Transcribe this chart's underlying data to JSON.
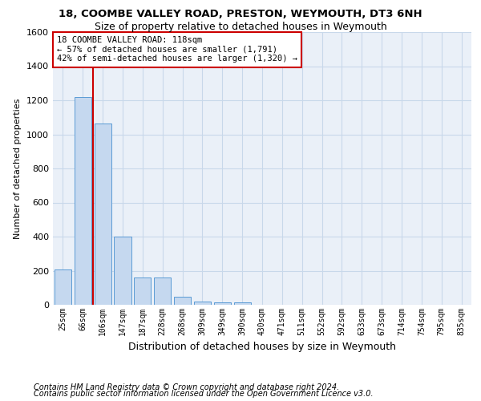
{
  "title1": "18, COOMBE VALLEY ROAD, PRESTON, WEYMOUTH, DT3 6NH",
  "title2": "Size of property relative to detached houses in Weymouth",
  "xlabel": "Distribution of detached houses by size in Weymouth",
  "ylabel": "Number of detached properties",
  "bin_labels": [
    "25sqm",
    "66sqm",
    "106sqm",
    "147sqm",
    "187sqm",
    "228sqm",
    "268sqm",
    "309sqm",
    "349sqm",
    "390sqm",
    "430sqm",
    "471sqm",
    "511sqm",
    "552sqm",
    "592sqm",
    "633sqm",
    "673sqm",
    "714sqm",
    "754sqm",
    "795sqm",
    "835sqm"
  ],
  "bar_heights": [
    205,
    1220,
    1065,
    400,
    160,
    160,
    45,
    18,
    12,
    12,
    0,
    0,
    0,
    0,
    0,
    0,
    0,
    0,
    0,
    0,
    0
  ],
  "bar_color": "#c5d8ef",
  "bar_edge_color": "#5b9bd5",
  "grid_color": "#c8d8ea",
  "bg_color": "#eaf0f8",
  "vline_x_idx": 1,
  "vline_color": "#cc0000",
  "annotation_text": "18 COOMBE VALLEY ROAD: 118sqm\n← 57% of detached houses are smaller (1,791)\n42% of semi-detached houses are larger (1,320) →",
  "annotation_box_color": "#ffffff",
  "annotation_box_edge": "#cc0000",
  "footnote1": "Contains HM Land Registry data © Crown copyright and database right 2024.",
  "footnote2": "Contains public sector information licensed under the Open Government Licence v3.0.",
  "ylim": [
    0,
    1600
  ],
  "yticks": [
    0,
    200,
    400,
    600,
    800,
    1000,
    1200,
    1400,
    1600
  ],
  "title1_fontsize": 9.5,
  "title2_fontsize": 9,
  "ylabel_fontsize": 8,
  "xlabel_fontsize": 9,
  "footnote_fontsize": 7,
  "bar_width": 0.85,
  "annotation_fontsize": 7.5
}
